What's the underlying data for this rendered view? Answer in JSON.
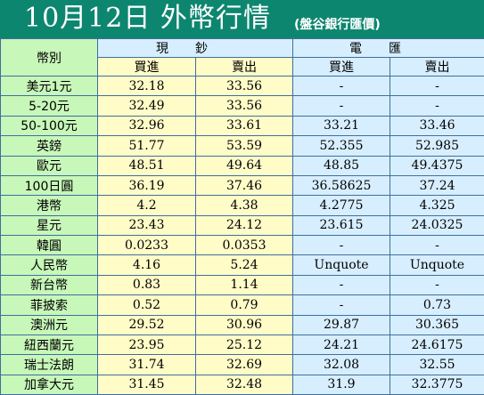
{
  "header": {
    "title": "10月12日 外幣行情",
    "subtitle": "(盤谷銀行匯價)"
  },
  "table": {
    "corner_label": "幣別",
    "groups": [
      "現鈔",
      "電匯"
    ],
    "sub_headers": [
      "買進",
      "賣出",
      "買進",
      "賣出"
    ],
    "rows": [
      {
        "currency": "美元1元",
        "cash_buy": "32.18",
        "cash_sell": "33.56",
        "wire_buy": "-",
        "wire_sell": "-"
      },
      {
        "currency": "5-20元",
        "cash_buy": "32.49",
        "cash_sell": "33.56",
        "wire_buy": "-",
        "wire_sell": "-"
      },
      {
        "currency": "50-100元",
        "cash_buy": "32.96",
        "cash_sell": "33.61",
        "wire_buy": "33.21",
        "wire_sell": "33.46"
      },
      {
        "currency": "英鎊",
        "cash_buy": "51.77",
        "cash_sell": "53.59",
        "wire_buy": "52.355",
        "wire_sell": "52.985"
      },
      {
        "currency": "歐元",
        "cash_buy": "48.51",
        "cash_sell": "49.64",
        "wire_buy": "48.85",
        "wire_sell": "49.4375"
      },
      {
        "currency": "100日圓",
        "cash_buy": "36.19",
        "cash_sell": "37.46",
        "wire_buy": "36.58625",
        "wire_sell": "37.24"
      },
      {
        "currency": "港幣",
        "cash_buy": "4.2",
        "cash_sell": "4.38",
        "wire_buy": "4.2775",
        "wire_sell": "4.325"
      },
      {
        "currency": "星元",
        "cash_buy": "23.43",
        "cash_sell": "24.12",
        "wire_buy": "23.615",
        "wire_sell": "24.0325"
      },
      {
        "currency": "韓圓",
        "cash_buy": "0.0233",
        "cash_sell": "0.0353",
        "wire_buy": "-",
        "wire_sell": "-"
      },
      {
        "currency": "人民幣",
        "cash_buy": "4.16",
        "cash_sell": "5.24",
        "wire_buy": "Unquote",
        "wire_sell": "Unquote"
      },
      {
        "currency": "新台幣",
        "cash_buy": "0.83",
        "cash_sell": "1.14",
        "wire_buy": "-",
        "wire_sell": "-"
      },
      {
        "currency": "菲披索",
        "cash_buy": "0.52",
        "cash_sell": "0.79",
        "wire_buy": "-",
        "wire_sell": "0.73"
      },
      {
        "currency": "澳洲元",
        "cash_buy": "29.52",
        "cash_sell": "30.96",
        "wire_buy": "29.87",
        "wire_sell": "30.365"
      },
      {
        "currency": "紐西蘭元",
        "cash_buy": "23.95",
        "cash_sell": "25.12",
        "wire_buy": "24.21",
        "wire_sell": "24.6175"
      },
      {
        "currency": "瑞士法朗",
        "cash_buy": "31.74",
        "cash_sell": "32.69",
        "wire_buy": "32.08",
        "wire_sell": "32.55"
      },
      {
        "currency": "加拿大元",
        "cash_buy": "31.45",
        "cash_sell": "32.48",
        "wire_buy": "31.9",
        "wire_sell": "32.3775"
      }
    ]
  },
  "colors": {
    "header_bg": "#0d8670",
    "label_column_bg": "#c7f7b9",
    "cash_column_bg": "#fffcc8",
    "wire_column_bg": "#d7eeff",
    "grid_line": "#3f6f9e"
  }
}
